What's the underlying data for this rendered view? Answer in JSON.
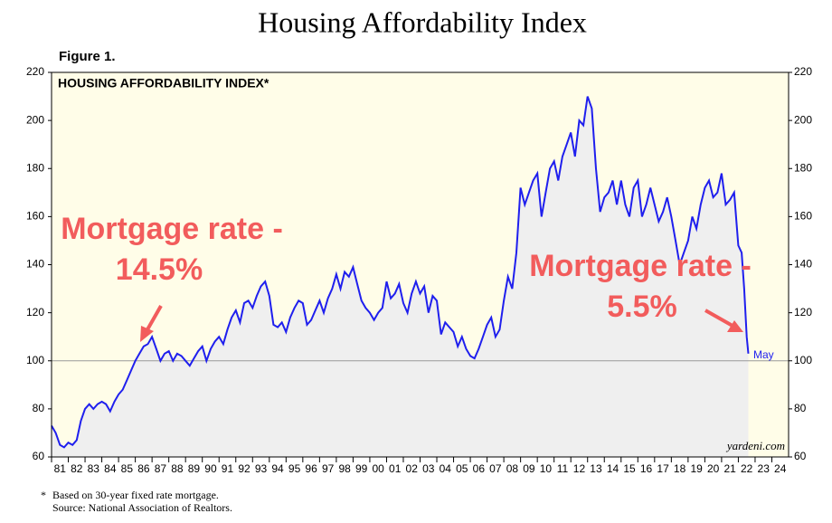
{
  "chart_data": {
    "type": "line",
    "title": "Housing Affordability Index",
    "figure_label": "Figure 1.",
    "subtitle": "HOUSING AFFORDABILITY INDEX*",
    "annotations": [
      "Mortgage rate -",
      "14.5%",
      "Mortgage rate -",
      "5.5%",
      "May"
    ],
    "watermark": "yardeni.com",
    "footnotes": [
      "*",
      "Based on 30-year fixed rate mortgage.",
      "Source: National Association of Realtors."
    ],
    "xlim": [
      1981,
      2025
    ],
    "xticks": [
      {
        "value": 1981,
        "label": "81"
      },
      {
        "value": 1982,
        "label": "82"
      },
      {
        "value": 1983,
        "label": "83"
      },
      {
        "value": 1984,
        "label": "84"
      },
      {
        "value": 1985,
        "label": "85"
      },
      {
        "value": 1986,
        "label": "86"
      },
      {
        "value": 1987,
        "label": "87"
      },
      {
        "value": 1988,
        "label": "88"
      },
      {
        "value": 1989,
        "label": "89"
      },
      {
        "value": 1990,
        "label": "90"
      },
      {
        "value": 1991,
        "label": "91"
      },
      {
        "value": 1992,
        "label": "92"
      },
      {
        "value": 1993,
        "label": "93"
      },
      {
        "value": 1994,
        "label": "94"
      },
      {
        "value": 1995,
        "label": "95"
      },
      {
        "value": 1996,
        "label": "96"
      },
      {
        "value": 1997,
        "label": "97"
      },
      {
        "value": 1998,
        "label": "98"
      },
      {
        "value": 1999,
        "label": "99"
      },
      {
        "value": 2000,
        "label": "00"
      },
      {
        "value": 2001,
        "label": "01"
      },
      {
        "value": 2002,
        "label": "02"
      },
      {
        "value": 2003,
        "label": "03"
      },
      {
        "value": 2004,
        "label": "04"
      },
      {
        "value": 2005,
        "label": "05"
      },
      {
        "value": 2006,
        "label": "06"
      },
      {
        "value": 2007,
        "label": "07"
      },
      {
        "value": 2008,
        "label": "08"
      },
      {
        "value": 2009,
        "label": "09"
      },
      {
        "value": 2010,
        "label": "10"
      },
      {
        "value": 2011,
        "label": "11"
      },
      {
        "value": 2012,
        "label": "12"
      },
      {
        "value": 2013,
        "label": "13"
      },
      {
        "value": 2014,
        "label": "14"
      },
      {
        "value": 2015,
        "label": "15"
      },
      {
        "value": 2016,
        "label": "16"
      },
      {
        "value": 2017,
        "label": "17"
      },
      {
        "value": 2018,
        "label": "18"
      },
      {
        "value": 2019,
        "label": "19"
      },
      {
        "value": 2020,
        "label": "20"
      },
      {
        "value": 2021,
        "label": "21"
      },
      {
        "value": 2022,
        "label": "22"
      },
      {
        "value": 2023,
        "label": "23"
      },
      {
        "value": 2024,
        "label": "24"
      }
    ],
    "ylim": [
      60,
      220
    ],
    "yticks": [
      60,
      80,
      100,
      120,
      140,
      160,
      180,
      200,
      220
    ],
    "y2lim": [
      60,
      220
    ],
    "y2ticks": [
      60,
      80,
      100,
      120,
      140,
      160,
      180,
      200,
      220
    ],
    "reference_line": 100,
    "background": "#fffde8",
    "area_color": "#efefef",
    "x": [
      1981,
      1981.25,
      1981.5,
      1981.75,
      1982,
      1982.25,
      1982.5,
      1982.75,
      1983,
      1983.25,
      1983.5,
      1983.75,
      1984,
      1984.25,
      1984.5,
      1984.75,
      1985,
      1985.25,
      1985.5,
      1985.75,
      1986,
      1986.25,
      1986.5,
      1986.75,
      1987,
      1987.25,
      1987.5,
      1987.75,
      1988,
      1988.25,
      1988.5,
      1988.75,
      1989,
      1989.25,
      1989.5,
      1989.75,
      1990,
      1990.25,
      1990.5,
      1990.75,
      1991,
      1991.25,
      1991.5,
      1991.75,
      1992,
      1992.25,
      1992.5,
      1992.75,
      1993,
      1993.25,
      1993.5,
      1993.75,
      1994,
      1994.25,
      1994.5,
      1994.75,
      1995,
      1995.25,
      1995.5,
      1995.75,
      1996,
      1996.25,
      1996.5,
      1996.75,
      1997,
      1997.25,
      1997.5,
      1997.75,
      1998,
      1998.25,
      1998.5,
      1998.75,
      1999,
      1999.25,
      1999.5,
      1999.75,
      2000,
      2000.25,
      2000.5,
      2000.75,
      2001,
      2001.25,
      2001.5,
      2001.75,
      2002,
      2002.25,
      2002.5,
      2002.75,
      2003,
      2003.25,
      2003.5,
      2003.75,
      2004,
      2004.25,
      2004.5,
      2004.75,
      2005,
      2005.25,
      2005.5,
      2005.75,
      2006,
      2006.25,
      2006.5,
      2006.75,
      2007,
      2007.25,
      2007.5,
      2007.75,
      2008,
      2008.25,
      2008.5,
      2008.75,
      2009,
      2009.25,
      2009.5,
      2009.75,
      2010,
      2010.25,
      2010.5,
      2010.75,
      2011,
      2011.25,
      2011.5,
      2011.75,
      2012,
      2012.25,
      2012.5,
      2012.75,
      2013,
      2013.25,
      2013.5,
      2013.75,
      2014,
      2014.25,
      2014.5,
      2014.75,
      2015,
      2015.25,
      2015.5,
      2015.75,
      2016,
      2016.25,
      2016.5,
      2016.75,
      2017,
      2017.25,
      2017.5,
      2017.75,
      2018,
      2018.25,
      2018.5,
      2018.75,
      2019,
      2019.25,
      2019.5,
      2019.75,
      2020,
      2020.25,
      2020.5,
      2020.75,
      2021,
      2021.25,
      2021.5,
      2021.75,
      2022,
      2022.2,
      2022.35,
      2022.5,
      2022.6
    ],
    "series": [
      {
        "name": "Housing Affordability Index",
        "color": "#1f1fee",
        "values": [
          73,
          70,
          65,
          64,
          66,
          65,
          67,
          75,
          80,
          82,
          80,
          82,
          83,
          82,
          79,
          83,
          86,
          88,
          92,
          96,
          100,
          103,
          106,
          107,
          110,
          105,
          100,
          103,
          104,
          100,
          103,
          102,
          100,
          98,
          101,
          104,
          106,
          100,
          105,
          108,
          110,
          107,
          113,
          118,
          121,
          116,
          124,
          125,
          122,
          127,
          131,
          133,
          127,
          115,
          114,
          116,
          112,
          118,
          122,
          125,
          124,
          115,
          117,
          121,
          125,
          120,
          126,
          130,
          136,
          130,
          137,
          135,
          139,
          132,
          125,
          122,
          120,
          117,
          120,
          122,
          133,
          126,
          128,
          132,
          124,
          120,
          128,
          133,
          128,
          131,
          120,
          127,
          125,
          111,
          116,
          114,
          112,
          106,
          110,
          105,
          102,
          101,
          105,
          110,
          115,
          118,
          110,
          113,
          125,
          135,
          130,
          145,
          172,
          165,
          170,
          175,
          178,
          160,
          170,
          180,
          183,
          175,
          185,
          190,
          195,
          185,
          200,
          198,
          210,
          205,
          180,
          162,
          168,
          170,
          175,
          165,
          175,
          165,
          160,
          172,
          175,
          160,
          165,
          172,
          165,
          158,
          162,
          168,
          160,
          150,
          140,
          145,
          150,
          160,
          155,
          165,
          172,
          175,
          168,
          170,
          178,
          165,
          167,
          170,
          148,
          145,
          130,
          110,
          103
        ]
      }
    ]
  }
}
